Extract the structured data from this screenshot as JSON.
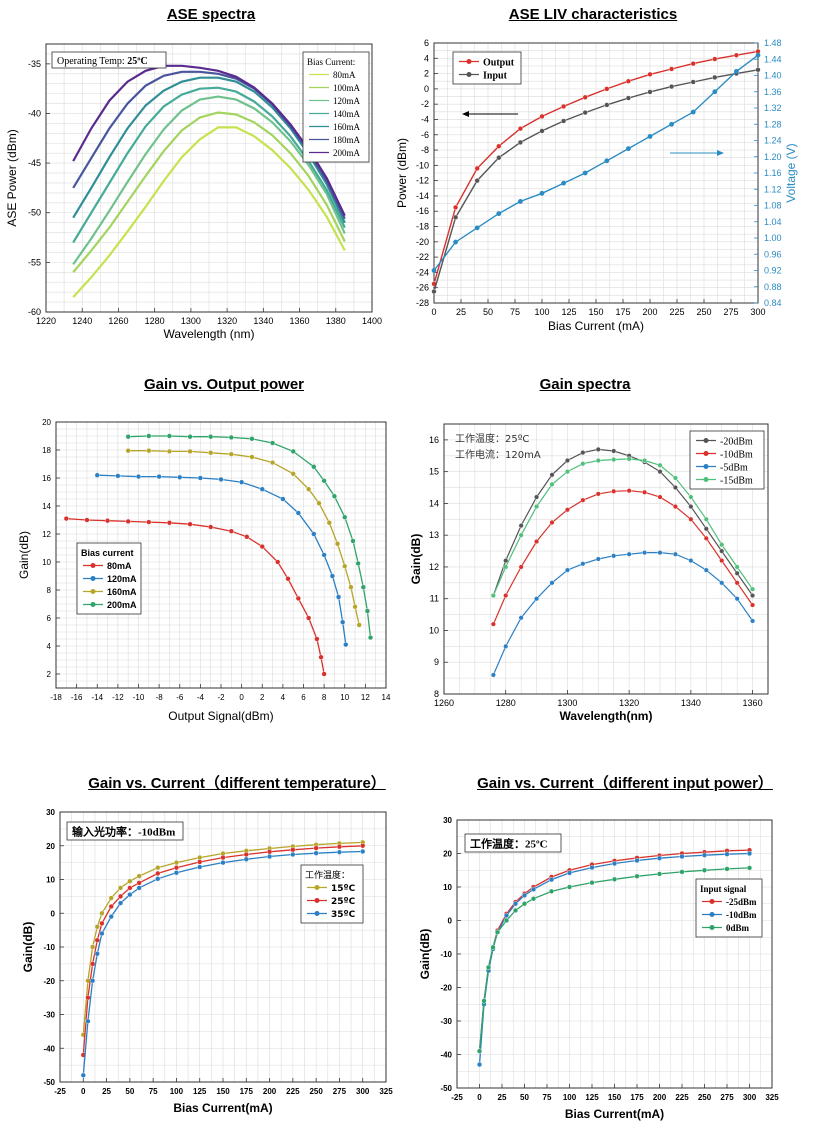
{
  "titles": {
    "t1": "ASE spectra",
    "t2": "ASE LIV characteristics",
    "t3": "Gain vs. Output power",
    "t4": "Gain spectra",
    "t5": "Gain vs. Current（different temperature）",
    "t6": "Gain vs. Current（different input power）"
  },
  "colors": {
    "ase": [
      "#c4e34e",
      "#a2d45e",
      "#6fc28c",
      "#45ab98",
      "#2f8f95",
      "#49569e",
      "#5a2a8f"
    ],
    "liv_output": "#d9312b",
    "liv_input": "#555555",
    "liv_voltage": "#2b8cc4",
    "red": "#d9312b",
    "blue": "#2b7fc4",
    "yellow": "#b5a528",
    "green": "#2fa36a",
    "gs_black": "#555555",
    "gs_green": "#4fbf7a",
    "grid": "#dcdcdc"
  },
  "chart_data": [
    {
      "id": "ase",
      "type": "line",
      "title": "ASE spectra",
      "xlabel": "Wavelength (nm)",
      "ylabel": "ASE Power (dBm)",
      "xlim": [
        1220,
        1400
      ],
      "ylim": [
        -60,
        -33
      ],
      "xticks": [
        1220,
        1240,
        1260,
        1280,
        1300,
        1320,
        1340,
        1360,
        1380,
        1400
      ],
      "yticks": [
        -60,
        -55,
        -50,
        -45,
        -40,
        -35
      ],
      "annotation_prefix": "Operating Temp: ",
      "annotation_value": "25ºC",
      "legend_title": "Bias Current:",
      "x": [
        1235,
        1245,
        1255,
        1265,
        1275,
        1285,
        1295,
        1305,
        1315,
        1325,
        1335,
        1345,
        1355,
        1365,
        1375,
        1385
      ],
      "series": [
        {
          "name": "80mA",
          "values": [
            -58.5,
            -56.5,
            -54.3,
            -51.9,
            -49.4,
            -46.8,
            -44.4,
            -42.6,
            -41.4,
            -41.4,
            -42.3,
            -43.7,
            -45.5,
            -47.7,
            -50.4,
            -53.8
          ]
        },
        {
          "name": "100mA",
          "values": [
            -56,
            -53.8,
            -51.5,
            -48.9,
            -46.3,
            -43.8,
            -41.7,
            -40.4,
            -39.9,
            -40.1,
            -40.9,
            -42.2,
            -44,
            -46.3,
            -49.2,
            -52.9
          ]
        },
        {
          "name": "120mA",
          "values": [
            -55.2,
            -52.6,
            -49.8,
            -46.9,
            -44.1,
            -41.6,
            -39.7,
            -38.6,
            -38.3,
            -38.6,
            -39.5,
            -40.9,
            -42.8,
            -45.2,
            -48.1,
            -52.1
          ]
        },
        {
          "name": "140mA",
          "values": [
            -53,
            -50,
            -47,
            -44,
            -41.3,
            -39.3,
            -38.1,
            -37.5,
            -37.4,
            -37.8,
            -38.8,
            -40.3,
            -42.3,
            -44.8,
            -47.7,
            -51.5
          ]
        },
        {
          "name": "160mA",
          "values": [
            -50.5,
            -47.5,
            -44.4,
            -41.5,
            -39.2,
            -37.7,
            -36.8,
            -36.4,
            -36.4,
            -36.8,
            -37.8,
            -39.4,
            -41.5,
            -44.1,
            -47.1,
            -51
          ]
        },
        {
          "name": "180mA",
          "values": [
            -47.5,
            -44.5,
            -41.5,
            -39,
            -37.2,
            -36.2,
            -35.8,
            -35.8,
            -36,
            -36.5,
            -37.5,
            -39.1,
            -41.3,
            -43.8,
            -46.8,
            -50.6
          ]
        },
        {
          "name": "200mA",
          "values": [
            -44.8,
            -41.5,
            -38.7,
            -36.8,
            -35.7,
            -35.2,
            -35.2,
            -35.4,
            -35.7,
            -36.3,
            -37.4,
            -39,
            -41.1,
            -43.6,
            -46.5,
            -50.3
          ]
        }
      ]
    },
    {
      "id": "liv",
      "type": "line",
      "title": "ASE LIV characteristics",
      "xlabel": "Bias Current (mA)",
      "ylabel": "Power (dBm)",
      "y2label": "Voltage (V)",
      "xlim": [
        0,
        300
      ],
      "ylim": [
        -28,
        6
      ],
      "y2lim": [
        0.84,
        1.48
      ],
      "xticks": [
        0,
        25,
        50,
        75,
        100,
        125,
        150,
        175,
        200,
        225,
        250,
        275,
        300
      ],
      "yticks": [
        -28,
        -26,
        -24,
        -22,
        -20,
        -18,
        -16,
        -14,
        -12,
        -10,
        -8,
        -6,
        -4,
        -2,
        0,
        2,
        4,
        6
      ],
      "y2ticks": [
        "0.84",
        "0.88",
        "0.92",
        "0.96",
        "1.00",
        "1.04",
        "1.08",
        "1.12",
        "1.16",
        "1.20",
        "1.24",
        "1.28",
        "1.32",
        "1.36",
        "1.40",
        "1.44",
        "1.48"
      ],
      "x": [
        0,
        20,
        40,
        60,
        80,
        100,
        120,
        140,
        160,
        180,
        200,
        220,
        240,
        260,
        280,
        300
      ],
      "output": [
        -25.5,
        -15.5,
        -10.4,
        -7.5,
        -5.2,
        -3.6,
        -2.3,
        -1.1,
        0,
        1,
        1.9,
        2.6,
        3.3,
        3.9,
        4.4,
        4.9
      ],
      "input": [
        -26.5,
        -16.8,
        -12,
        -9,
        -7,
        -5.5,
        -4.2,
        -3.1,
        -2.1,
        -1.2,
        -0.4,
        0.3,
        0.9,
        1.5,
        2,
        2.5
      ],
      "voltage_x": [
        0,
        20,
        40,
        60,
        80,
        100,
        120,
        140,
        160,
        180,
        200,
        220,
        240,
        260,
        280,
        300
      ],
      "voltage": [
        0.92,
        0.99,
        1.025,
        1.06,
        1.09,
        1.11,
        1.135,
        1.16,
        1.19,
        1.22,
        1.25,
        1.28,
        1.31,
        1.36,
        1.41,
        1.45
      ],
      "legend": [
        "Output",
        "Input"
      ]
    },
    {
      "id": "gop",
      "type": "line",
      "title": "Gain vs. Output power",
      "xlabel": "Output Signal(dBm)",
      "ylabel": "Gain(dB)",
      "xlim": [
        -18,
        14
      ],
      "ylim": [
        1,
        20
      ],
      "xticks": [
        -18,
        -16,
        -14,
        -12,
        -10,
        -8,
        -6,
        -4,
        -2,
        0,
        2,
        4,
        6,
        8,
        10,
        12,
        14
      ],
      "yticks": [
        2,
        4,
        6,
        8,
        10,
        12,
        14,
        16,
        18,
        20
      ],
      "legend_title": "Bias current",
      "series": [
        {
          "name": "80mA",
          "x": [
            -17,
            -15,
            -13,
            -11,
            -9,
            -7,
            -5,
            -3,
            -1,
            0.5,
            2,
            3.5,
            4.5,
            5.5,
            6.5,
            7.3,
            7.7,
            8
          ],
          "y": [
            13.1,
            13,
            12.95,
            12.9,
            12.85,
            12.8,
            12.7,
            12.5,
            12.2,
            11.8,
            11.1,
            10,
            8.8,
            7.4,
            6,
            4.5,
            3.2,
            2
          ]
        },
        {
          "name": "120mA",
          "x": [
            -14,
            -12,
            -10,
            -8,
            -6,
            -4,
            -2,
            0,
            2,
            4,
            5.5,
            7,
            8,
            8.8,
            9.4,
            9.8,
            10.1
          ],
          "y": [
            16.2,
            16.15,
            16.1,
            16.1,
            16.05,
            16,
            15.9,
            15.7,
            15.2,
            14.5,
            13.5,
            12,
            10.5,
            9,
            7.5,
            5.7,
            4.1
          ]
        },
        {
          "name": "160mA",
          "x": [
            -11,
            -9,
            -7,
            -5,
            -3,
            -1,
            1,
            3,
            5,
            6.5,
            7.5,
            8.5,
            9.3,
            10,
            10.6,
            11,
            11.4
          ],
          "y": [
            17.95,
            17.95,
            17.9,
            17.9,
            17.8,
            17.7,
            17.5,
            17.1,
            16.3,
            15.2,
            14.2,
            12.8,
            11.3,
            9.7,
            8.2,
            6.8,
            5.5
          ]
        },
        {
          "name": "200mA",
          "x": [
            -11,
            -9,
            -7,
            -5,
            -3,
            -1,
            1,
            3,
            5,
            7,
            8,
            9,
            10,
            10.8,
            11.3,
            11.8,
            12.2,
            12.5
          ],
          "y": [
            18.95,
            19,
            19,
            18.95,
            18.95,
            18.9,
            18.8,
            18.5,
            17.9,
            16.8,
            15.8,
            14.7,
            13.2,
            11.5,
            9.9,
            8.2,
            6.5,
            4.6
          ]
        }
      ]
    },
    {
      "id": "gspec",
      "type": "line",
      "title": "Gain spectra",
      "xlabel": "Wavelength(nm)",
      "ylabel": "Gain(dB)",
      "xlim": [
        1260,
        1365
      ],
      "ylim": [
        8,
        16.5
      ],
      "xticks": [
        1260,
        1280,
        1300,
        1320,
        1340,
        1360
      ],
      "yticks": [
        8,
        9,
        10,
        11,
        12,
        13,
        14,
        15,
        16
      ],
      "annotations": [
        "工作温度：25ºC",
        "工作电流：120mA"
      ],
      "x": [
        1276,
        1280,
        1285,
        1290,
        1295,
        1300,
        1305,
        1310,
        1315,
        1320,
        1325,
        1330,
        1335,
        1340,
        1345,
        1350,
        1355,
        1360
      ],
      "series": [
        {
          "name": "-20dBm",
          "values": [
            11.1,
            12.2,
            13.3,
            14.2,
            14.9,
            15.35,
            15.6,
            15.7,
            15.65,
            15.5,
            15.3,
            15,
            14.5,
            13.9,
            13.2,
            12.5,
            11.8,
            11.1
          ]
        },
        {
          "name": "-10dBm",
          "values": [
            10.2,
            11.1,
            12,
            12.8,
            13.4,
            13.8,
            14.1,
            14.3,
            14.38,
            14.4,
            14.35,
            14.2,
            13.9,
            13.5,
            12.9,
            12.2,
            11.5,
            10.8
          ]
        },
        {
          "name": "-5dBm",
          "values": [
            8.6,
            9.5,
            10.4,
            11,
            11.5,
            11.9,
            12.1,
            12.25,
            12.35,
            12.4,
            12.45,
            12.45,
            12.4,
            12.2,
            11.9,
            11.5,
            11,
            10.3
          ]
        },
        {
          "name": "-15dBm",
          "values": [
            11.1,
            12,
            13,
            13.9,
            14.6,
            15,
            15.25,
            15.35,
            15.38,
            15.4,
            15.35,
            15.2,
            14.8,
            14.2,
            13.5,
            12.7,
            12,
            11.3
          ]
        }
      ]
    },
    {
      "id": "gct",
      "type": "line",
      "title": "Gain vs. Current（different temperature）",
      "xlabel": "Bias Current(mA)",
      "ylabel": "Gain(dB)",
      "xlim": [
        -25,
        325
      ],
      "ylim": [
        -50,
        30
      ],
      "xticks": [
        -25,
        0,
        25,
        50,
        75,
        100,
        125,
        150,
        175,
        200,
        225,
        250,
        275,
        300,
        325
      ],
      "yticks": [
        -50,
        -40,
        -30,
        -20,
        -10,
        0,
        10,
        20,
        30
      ],
      "annotation": "输入光功率：-10dBm",
      "legend_title": "工作温度：",
      "x": [
        0,
        5,
        10,
        15,
        20,
        30,
        40,
        50,
        60,
        80,
        100,
        125,
        150,
        175,
        200,
        225,
        250,
        275,
        300
      ],
      "series": [
        {
          "name": "15ºC",
          "values": [
            -36,
            -20,
            -10,
            -4,
            0,
            4.5,
            7.5,
            9.5,
            11,
            13.5,
            15,
            16.5,
            17.7,
            18.5,
            19.2,
            19.8,
            20.3,
            20.7,
            21
          ]
        },
        {
          "name": "25ºC",
          "values": [
            -42,
            -25,
            -15,
            -8,
            -3,
            2,
            5,
            7.5,
            9,
            11.8,
            13.5,
            15.2,
            16.5,
            17.4,
            18.2,
            18.8,
            19.3,
            19.7,
            20
          ]
        },
        {
          "name": "35ºC",
          "values": [
            -48,
            -32,
            -20,
            -12,
            -6,
            -1,
            3,
            5.5,
            7.5,
            10.2,
            12,
            13.7,
            15,
            16,
            16.8,
            17.4,
            17.8,
            18.1,
            18.3
          ]
        }
      ]
    },
    {
      "id": "gcp",
      "type": "line",
      "title": "Gain vs. Current（different input power）",
      "xlabel": "Bias Current(mA)",
      "ylabel": "Gain(dB)",
      "xlim": [
        -25,
        325
      ],
      "ylim": [
        -50,
        30
      ],
      "xticks": [
        -25,
        0,
        25,
        50,
        75,
        100,
        125,
        150,
        175,
        200,
        225,
        250,
        275,
        300,
        325
      ],
      "yticks": [
        -50,
        -40,
        -30,
        -20,
        -10,
        0,
        10,
        20,
        30
      ],
      "annotation": "工作温度：25ºC",
      "legend_title": "Input signal",
      "x": [
        0,
        5,
        10,
        15,
        20,
        30,
        40,
        50,
        60,
        80,
        100,
        125,
        150,
        175,
        200,
        225,
        250,
        275,
        300
      ],
      "series": [
        {
          "name": "-25dBm",
          "values": [
            -39,
            -24,
            -14,
            -8,
            -3,
            2,
            5.5,
            8,
            10,
            13,
            15,
            16.7,
            17.8,
            18.7,
            19.4,
            20,
            20.4,
            20.8,
            21
          ]
        },
        {
          "name": "-10dBm",
          "values": [
            -43,
            -25,
            -15,
            -8.5,
            -3.5,
            1.5,
            5,
            7.5,
            9.3,
            12.2,
            14.2,
            15.8,
            17,
            17.9,
            18.6,
            19.1,
            19.5,
            19.8,
            20
          ]
        },
        {
          "name": "0dBm",
          "values": [
            -39,
            -24,
            -14,
            -8,
            -3.5,
            0,
            3,
            5,
            6.5,
            8.7,
            10,
            11.3,
            12.3,
            13.2,
            13.9,
            14.5,
            15,
            15.4,
            15.7
          ]
        }
      ]
    }
  ]
}
